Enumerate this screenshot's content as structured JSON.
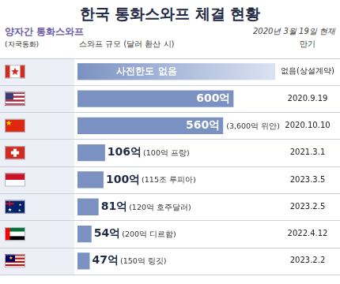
{
  "chart_data": {
    "type": "bar",
    "orientation": "horizontal",
    "title": "한국 통화스와프 체결 현황",
    "subtitle": "2020년 3월 19일 현재",
    "section_title": "양자간 통화스와프",
    "category_header": "(자국통화)",
    "value_header": "스와프 규모 (달러 환산 시)",
    "maturity_header": "만기",
    "categories": [
      "캐나다",
      "미국",
      "중국",
      "스위스",
      "인도네시아",
      "호주",
      "UAE",
      "말레이시아"
    ],
    "values": [
      null,
      600,
      560,
      106,
      100,
      81,
      54,
      47
    ],
    "value_labels": [
      "사전한도 없음",
      "600억",
      "560억",
      "106억",
      "100억",
      "81억",
      "54억",
      "47억"
    ],
    "local_currency": [
      null,
      null,
      "(3,600억 위안)",
      "(100억 프랑)",
      "(115조 루피아)",
      "(120억 호주달러)",
      "(200억 디르함)",
      "(150억 링깃)"
    ],
    "maturity": [
      "없음(상설계약)",
      "2020.9.19",
      "2020.10.10",
      "2021.3.1",
      "2023.3.5",
      "2023.2.5",
      "2022.4.12",
      "2023.2.2"
    ],
    "color": "#7b91c2",
    "xlim": [
      0,
      760
    ],
    "xticks": [],
    "grid": false,
    "data_labels": true,
    "tick_labels": "y"
  }
}
